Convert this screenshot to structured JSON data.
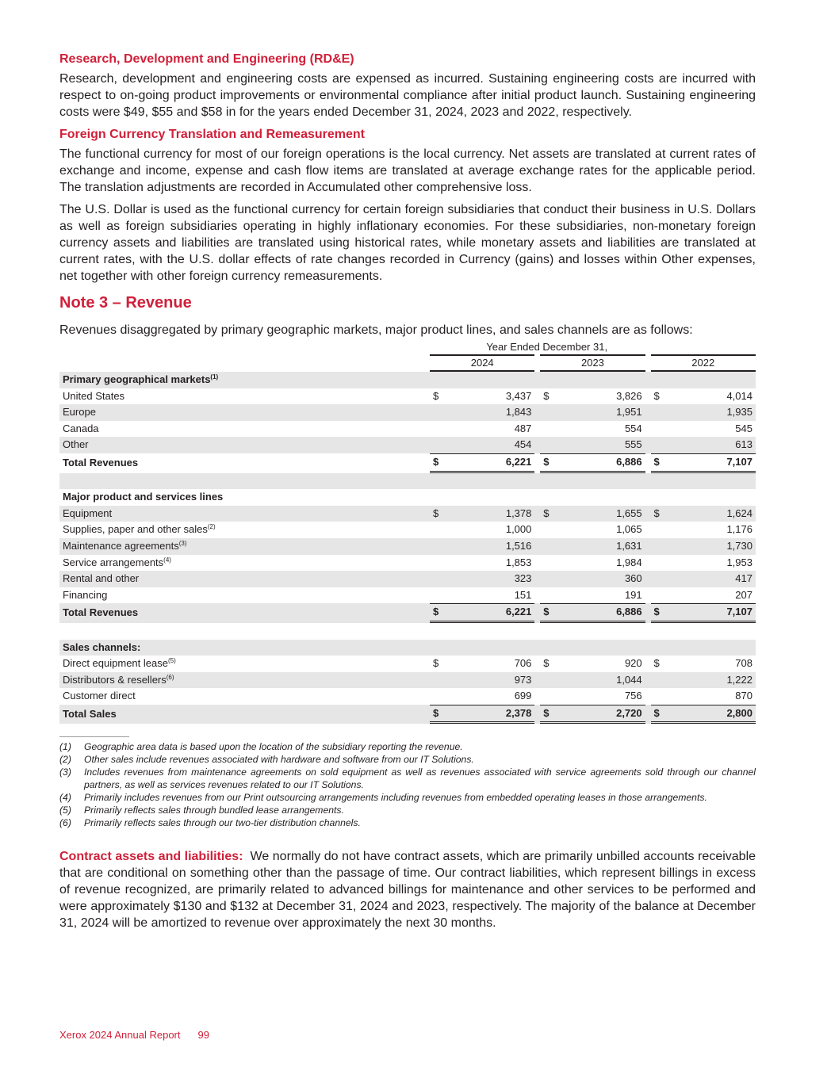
{
  "sections": {
    "rde_heading": "Research, Development and Engineering (RD&E)",
    "rde_text": "Research, development and engineering costs are expensed as incurred. Sustaining engineering costs are incurred with respect to on-going product improvements or environmental compliance after initial product launch. Sustaining engineering costs were $49, $55 and $58 in for the years ended December 31, 2024, 2023 and 2022, respectively.",
    "fx_heading": "Foreign Currency Translation and Remeasurement",
    "fx_text1": "The functional currency for most of our foreign operations is the local currency. Net assets are translated at current rates of exchange and income, expense and cash flow items are translated at average exchange rates for the applicable period. The translation adjustments are recorded in Accumulated other comprehensive loss.",
    "fx_text2": "The U.S. Dollar is used as the functional currency for certain foreign subsidiaries that conduct their business in U.S. Dollars as well as foreign subsidiaries operating in highly inflationary economies. For these subsidiaries, non-monetary foreign currency assets and liabilities are translated using historical rates, while monetary assets and liabilities are translated at current rates, with the U.S. dollar effects of rate changes recorded in Currency (gains) and losses within Other expenses, net together with other foreign currency remeasurements.",
    "note_title": "Note 3 – Revenue",
    "note_intro": "Revenues disaggregated by primary geographic markets, major product lines, and sales channels are as follows:"
  },
  "table": {
    "period_header": "Year Ended December 31,",
    "years": [
      "2024",
      "2023",
      "2022"
    ],
    "currency": "$",
    "rows": [
      {
        "label": "Primary geographical markets",
        "sup": "(1)",
        "type": "header",
        "shade": true
      },
      {
        "label": "United States",
        "values": [
          "3,437",
          "3,826",
          "4,014"
        ],
        "dollar": true,
        "shade": false
      },
      {
        "label": "Europe",
        "values": [
          "1,843",
          "1,951",
          "1,935"
        ],
        "shade": true
      },
      {
        "label": "Canada",
        "values": [
          "487",
          "554",
          "545"
        ],
        "shade": false
      },
      {
        "label": "Other",
        "values": [
          "454",
          "555",
          "613"
        ],
        "shade": true
      },
      {
        "label": "Total Revenues",
        "values": [
          "6,221",
          "6,886",
          "7,107"
        ],
        "dollar": true,
        "type": "total",
        "shade": false
      },
      {
        "label": "",
        "type": "spacer",
        "shade": true
      },
      {
        "label": "Major product and services lines",
        "type": "header",
        "shade": false
      },
      {
        "label": "Equipment",
        "values": [
          "1,378",
          "1,655",
          "1,624"
        ],
        "dollar": true,
        "shade": true
      },
      {
        "label": "Supplies, paper and other sales",
        "sup": "(2)",
        "values": [
          "1,000",
          "1,065",
          "1,176"
        ],
        "shade": false
      },
      {
        "label": "Maintenance agreements",
        "sup": "(3)",
        "values": [
          "1,516",
          "1,631",
          "1,730"
        ],
        "shade": true
      },
      {
        "label": "Service arrangements",
        "sup": "(4)",
        "values": [
          "1,853",
          "1,984",
          "1,953"
        ],
        "shade": false
      },
      {
        "label": "Rental and other",
        "values": [
          "323",
          "360",
          "417"
        ],
        "shade": true
      },
      {
        "label": "Financing",
        "values": [
          "151",
          "191",
          "207"
        ],
        "shade": false
      },
      {
        "label": "Total Revenues",
        "values": [
          "6,221",
          "6,886",
          "7,107"
        ],
        "dollar": true,
        "type": "total",
        "shade": true
      },
      {
        "label": "",
        "type": "spacer",
        "shade": false
      },
      {
        "label": "Sales channels:",
        "type": "header",
        "shade": true
      },
      {
        "label": "Direct equipment lease",
        "sup": "(5)",
        "values": [
          "706",
          "920",
          "708"
        ],
        "dollar": true,
        "shade": false
      },
      {
        "label": "Distributors & resellers",
        "sup": "(6)",
        "values": [
          "973",
          "1,044",
          "1,222"
        ],
        "shade": true
      },
      {
        "label": "Customer direct",
        "values": [
          "699",
          "756",
          "870"
        ],
        "shade": false
      },
      {
        "label": "Total Sales",
        "values": [
          "2,378",
          "2,720",
          "2,800"
        ],
        "dollar": true,
        "type": "total",
        "shade": true
      }
    ]
  },
  "footnotes": [
    {
      "num": "(1)",
      "text": "Geographic area data is based upon the location of the subsidiary reporting the revenue."
    },
    {
      "num": "(2)",
      "text": "Other sales include revenues associated with hardware and software from our IT Solutions."
    },
    {
      "num": "(3)",
      "text": "Includes revenues from maintenance agreements on sold equipment as well as revenues associated with service agreements sold through our channel partners, as well as services revenues related to our IT Solutions."
    },
    {
      "num": "(4)",
      "text": "Primarily includes revenues from our Print outsourcing arrangements including revenues from embedded operating leases in those arrangements."
    },
    {
      "num": "(5)",
      "text": "Primarily reflects sales through bundled lease arrangements."
    },
    {
      "num": "(6)",
      "text": "Primarily reflects sales through our two-tier distribution channels."
    }
  ],
  "contract": {
    "heading": "Contract assets and liabilities:",
    "text": "We normally do not have contract assets, which are primarily unbilled accounts receivable that are conditional on something other than the passage of time. Our contract liabilities, which represent billings in excess of revenue recognized, are primarily related to advanced billings for maintenance and other services to be performed and were approximately $130 and $132 at December 31, 2024 and 2023, respectively. The majority of the balance at December 31, 2024 will be amortized to revenue over approximately the next 30 months."
  },
  "footer": {
    "report": "Xerox 2024 Annual Report",
    "page": "99"
  },
  "colors": {
    "accent": "#d0203a",
    "shade": "#e6e6e6",
    "text": "#231f20"
  }
}
